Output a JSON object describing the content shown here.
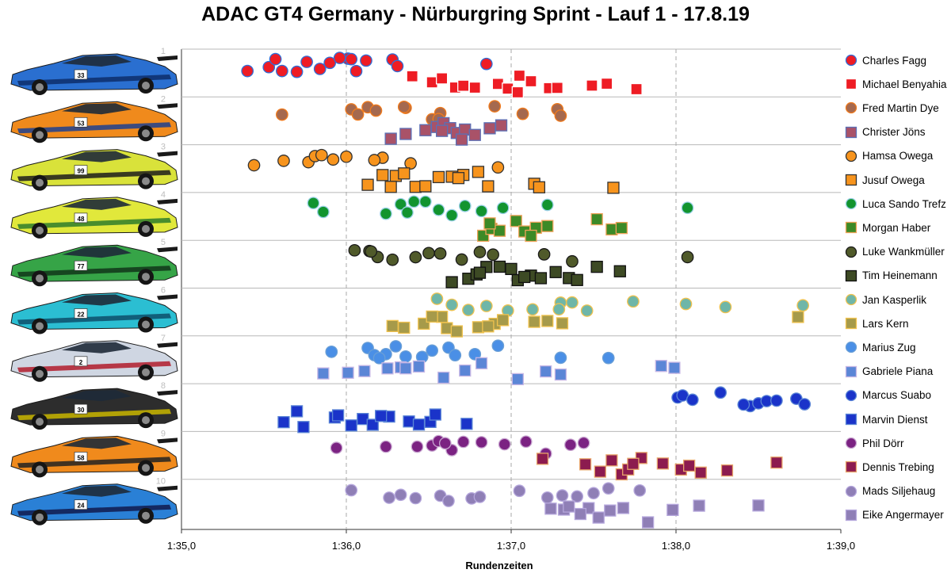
{
  "chart_data": {
    "type": "scatter",
    "title": "ADAC GT4 Germany - Nürburgring Sprint - Lauf 1 - 17.8.19",
    "xlabel": "Rundenzeiten",
    "ylabel": "",
    "xlim": [
      95.0,
      99.0
    ],
    "x_ticks": [
      {
        "value": 95.0,
        "label": "1:35,0"
      },
      {
        "value": 96.0,
        "label": "1:36,0"
      },
      {
        "value": 97.0,
        "label": "1:37,0"
      },
      {
        "value": 98.0,
        "label": "1:38,0"
      },
      {
        "value": 99.0,
        "label": "1:39,0"
      }
    ],
    "y_ticks": [
      "1",
      "2",
      "3",
      "4",
      "5",
      "6",
      "7",
      "8",
      "9",
      "10"
    ],
    "grid": "vertical dashed at 1:36,0, 1:37,0, 1:38,0; horizontal solid separator per car",
    "legend_position": "right",
    "cars": [
      {
        "number": "1",
        "livery": "#2a6fd0",
        "accent": "#0d2e6b",
        "decal": "33"
      },
      {
        "number": "2",
        "livery": "#f08a1c",
        "accent": "#1d3f8f",
        "decal": "53"
      },
      {
        "number": "3",
        "livery": "#d9e23a",
        "accent": "#1c1c1c",
        "decal": "99"
      },
      {
        "number": "4",
        "livery": "#e1e83b",
        "accent": "#2e7d2b",
        "decal": "48"
      },
      {
        "number": "5",
        "livery": "#36a447",
        "accent": "#11361a",
        "decal": "77"
      },
      {
        "number": "6",
        "livery": "#2bbed2",
        "accent": "#0d4f6b",
        "decal": "22"
      },
      {
        "number": "7",
        "livery": "#cfd6e2",
        "accent": "#b21c2c",
        "decal": "2"
      },
      {
        "number": "8",
        "livery": "#2d2d2d",
        "accent": "#c9b600",
        "decal": "30"
      },
      {
        "number": "9",
        "livery": "#f08a1c",
        "accent": "#222222",
        "decal": "58"
      },
      {
        "number": "10",
        "livery": "#2a80d6",
        "accent": "#101a4d",
        "decal": "24"
      }
    ],
    "series": [
      {
        "name": "Charles Fagg",
        "marker": "circle",
        "color": "#ee1c24",
        "stroke": "#2e6fd9",
        "row": 1,
        "x": [
          95.4,
          95.53,
          95.57,
          95.61,
          95.7,
          95.76,
          95.84,
          95.9,
          96.01,
          96.06,
          96.12,
          96.28,
          96.31,
          96.85,
          95.96,
          96.03
        ]
      },
      {
        "name": "Michael Benyahia",
        "marker": "square",
        "color": "#ee1c24",
        "stroke": "#ffffff",
        "row": 1,
        "x": [
          96.4,
          96.52,
          96.66,
          96.71,
          96.78,
          96.92,
          96.98,
          97.05,
          97.12,
          97.23,
          97.28,
          97.49,
          97.58,
          97.76,
          96.58,
          97.04
        ]
      },
      {
        "name": "Fred Martin Dye",
        "marker": "circle",
        "color": "#a5694f",
        "stroke": "#f07a1c",
        "row": 2,
        "x": [
          95.61,
          96.03,
          96.13,
          96.18,
          96.36,
          96.52,
          96.57,
          96.9,
          97.07,
          97.28,
          96.07,
          96.35,
          96.56,
          97.3
        ]
      },
      {
        "name": "Christer Jöns",
        "marker": "square",
        "color": "#a95268",
        "stroke": "#5b6fb5",
        "row": 2,
        "x": [
          96.27,
          96.36,
          96.48,
          96.55,
          96.59,
          96.63,
          96.67,
          96.72,
          96.78,
          96.87,
          96.94,
          96.58,
          96.7
        ]
      },
      {
        "name": "Hamsa Owega",
        "marker": "circle",
        "color": "#f7941d",
        "stroke": "#333333",
        "row": 3,
        "x": [
          95.44,
          95.62,
          95.77,
          95.81,
          95.85,
          95.92,
          96.0,
          96.22,
          96.39,
          96.92,
          96.17
        ]
      },
      {
        "name": "Jusuf Owega",
        "marker": "square",
        "color": "#f7941d",
        "stroke": "#333333",
        "row": 3,
        "x": [
          96.13,
          96.22,
          96.3,
          96.35,
          96.42,
          96.48,
          96.56,
          96.64,
          96.71,
          96.8,
          96.86,
          97.14,
          97.17,
          97.62,
          96.27,
          96.68
        ]
      },
      {
        "name": "Luca Sando Trefz",
        "marker": "circle",
        "color": "#12942f",
        "stroke": "#9ad0e6",
        "row": 4,
        "x": [
          95.8,
          95.86,
          96.24,
          96.33,
          96.41,
          96.48,
          96.56,
          96.64,
          96.72,
          96.82,
          96.95,
          97.22,
          98.07,
          96.37
        ]
      },
      {
        "name": "Morgan Haber",
        "marker": "square",
        "color": "#3c8a27",
        "stroke": "#f0a35a",
        "row": 4,
        "x": [
          96.83,
          96.88,
          96.93,
          97.03,
          97.08,
          97.15,
          97.22,
          97.52,
          97.61,
          97.67,
          96.87,
          97.12
        ]
      },
      {
        "name": "Luke Wankmüller",
        "marker": "circle",
        "color": "#505a2a",
        "stroke": "#1a1a1a",
        "row": 5,
        "x": [
          96.05,
          96.14,
          96.19,
          96.28,
          96.42,
          96.5,
          96.57,
          96.7,
          96.81,
          96.89,
          97.2,
          97.37,
          98.07,
          96.15
        ]
      },
      {
        "name": "Tim Heinemann",
        "marker": "square",
        "color": "#3d4a24",
        "stroke": "#101010",
        "row": 5,
        "x": [
          96.64,
          96.74,
          96.79,
          96.85,
          96.93,
          97.0,
          97.04,
          97.12,
          97.18,
          97.27,
          97.35,
          97.4,
          97.52,
          97.66,
          96.81,
          97.08
        ]
      },
      {
        "name": "Jan Kasperlik",
        "marker": "circle",
        "color": "#6fb6a8",
        "stroke": "#f0c24e",
        "row": 6,
        "x": [
          96.55,
          96.64,
          96.74,
          96.85,
          96.98,
          97.13,
          97.3,
          97.37,
          97.46,
          97.74,
          98.06,
          98.3,
          98.77,
          97.29
        ]
      },
      {
        "name": "Lars Kern",
        "marker": "square",
        "color": "#a69a4a",
        "stroke": "#f0c24e",
        "row": 6,
        "x": [
          96.28,
          96.35,
          96.47,
          96.58,
          96.61,
          96.67,
          96.8,
          96.9,
          96.95,
          97.14,
          97.22,
          97.31,
          98.74,
          96.52,
          96.86
        ]
      },
      {
        "name": "Marius Zug",
        "marker": "circle",
        "color": "#4a8fe6",
        "stroke": "#6a9fd6",
        "row": 7,
        "x": [
          95.91,
          96.13,
          96.17,
          96.24,
          96.3,
          96.36,
          96.46,
          96.62,
          96.66,
          96.78,
          96.92,
          97.3,
          97.59,
          96.52,
          96.2
        ]
      },
      {
        "name": "Gabriele Piana",
        "marker": "square",
        "color": "#5b86d6",
        "stroke": "#c7b7e5",
        "row": 7,
        "x": [
          95.86,
          96.01,
          96.11,
          96.25,
          96.33,
          96.44,
          96.59,
          96.72,
          96.82,
          97.04,
          97.21,
          97.3,
          97.91,
          97.99,
          96.36
        ]
      },
      {
        "name": "Marcus Suabo",
        "marker": "circle",
        "color": "#1a33c9",
        "stroke": "#5b86d6",
        "row": 8,
        "x": [
          98.01,
          98.04,
          98.1,
          98.27,
          98.45,
          98.5,
          98.55,
          98.61,
          98.73,
          98.78,
          98.41
        ]
      },
      {
        "name": "Marvin Dienst",
        "marker": "square",
        "color": "#1a33c9",
        "stroke": "#5b86d6",
        "row": 8,
        "x": [
          95.62,
          95.7,
          95.74,
          95.93,
          96.03,
          96.1,
          96.16,
          96.26,
          96.38,
          96.44,
          96.51,
          96.54,
          96.73,
          95.95,
          96.21
        ]
      },
      {
        "name": "Phil Dörr",
        "marker": "circle",
        "color": "#7b2282",
        "stroke": "#c7a4cf",
        "row": 9,
        "x": [
          95.94,
          96.24,
          96.43,
          96.52,
          96.56,
          96.64,
          96.71,
          96.82,
          96.96,
          97.09,
          97.21,
          97.36,
          97.44,
          96.6
        ]
      },
      {
        "name": "Dennis Trebing",
        "marker": "square",
        "color": "#8c1b4f",
        "stroke": "#e8a56a",
        "row": 9,
        "x": [
          97.19,
          97.45,
          97.54,
          97.61,
          97.67,
          97.71,
          97.79,
          97.92,
          98.03,
          98.08,
          98.15,
          98.31,
          98.61,
          97.74
        ]
      },
      {
        "name": "Mads Siljehaug",
        "marker": "circle",
        "color": "#8f7fb6",
        "stroke": "#b5a7dc",
        "row": 10,
        "x": [
          96.03,
          96.26,
          96.33,
          96.42,
          96.57,
          96.62,
          96.76,
          96.81,
          97.05,
          97.22,
          97.31,
          97.4,
          97.5,
          97.59,
          97.78
        ]
      },
      {
        "name": "Eike Angermayer",
        "marker": "square",
        "color": "#8f7fb6",
        "stroke": "#b5a7dc",
        "row": 10,
        "x": [
          97.24,
          97.32,
          97.35,
          97.47,
          97.53,
          97.6,
          97.68,
          97.83,
          97.98,
          98.14,
          98.5,
          97.42
        ]
      }
    ]
  }
}
